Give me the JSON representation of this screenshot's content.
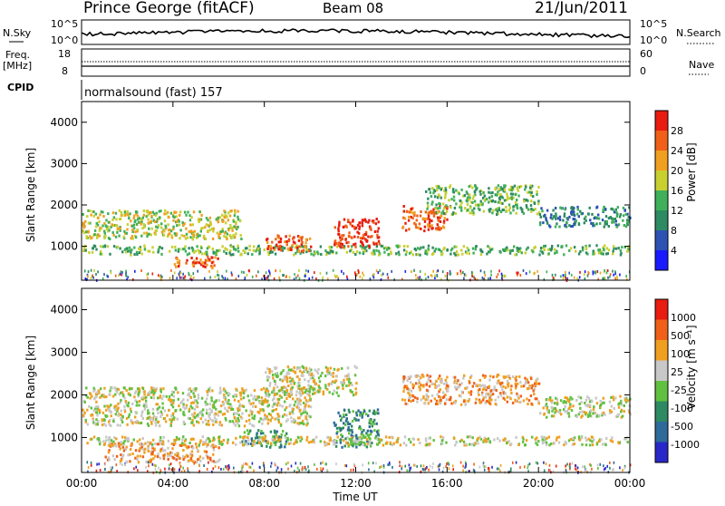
{
  "header": {
    "station": "Prince George (fitACF)",
    "beam": "Beam 08",
    "date": "21/Jun/2011"
  },
  "status_panels": {
    "nsky_label": "N.Sky",
    "nsky_ticks": [
      "10^5",
      "10^0"
    ],
    "nsearch_label": "N.Search",
    "nsearch_ticks": [
      "10^5",
      "10^0"
    ],
    "freq_label": "Freq.",
    "freq_unit": "[MHz]",
    "freq_ticks": [
      "18",
      "8"
    ],
    "nave_label": "Nave",
    "nave_ticks": [
      "60",
      "0"
    ],
    "cpid_label": "CPID",
    "cpid_value": "normalsound (fast) 157"
  },
  "chart_data": [
    {
      "type": "heatmap",
      "id": "power",
      "ylabel": "Slant Range [km]",
      "ylim": [
        180,
        4500
      ],
      "yticks": [
        1000,
        2000,
        3000,
        4000
      ],
      "xlim": [
        0,
        24
      ],
      "colorbar_label": "Power [dB]",
      "colorbar_ticks": [
        "4",
        "8",
        "12",
        "16",
        "20",
        "24",
        "28"
      ],
      "colors": [
        "#1a1aff",
        "#2c52b4",
        "#2e8a62",
        "#40b05a",
        "#c8d030",
        "#f0a020",
        "#f06018",
        "#e81c10"
      ],
      "scatter_regions": [
        {
          "x": [
            0,
            7
          ],
          "y": [
            1200,
            1900
          ],
          "level": 4
        },
        {
          "x": [
            0,
            24
          ],
          "y": [
            820,
            1050
          ],
          "level": 3
        },
        {
          "x": [
            4,
            6
          ],
          "y": [
            500,
            800
          ],
          "level": 6
        },
        {
          "x": [
            11,
            13
          ],
          "y": [
            1000,
            1700
          ],
          "level": 7
        },
        {
          "x": [
            8,
            10
          ],
          "y": [
            900,
            1300
          ],
          "level": 6
        },
        {
          "x": [
            14,
            16
          ],
          "y": [
            1400,
            2000
          ],
          "level": 6
        },
        {
          "x": [
            15,
            20
          ],
          "y": [
            1800,
            2500
          ],
          "level": 3
        },
        {
          "x": [
            20,
            24
          ],
          "y": [
            1500,
            2000
          ],
          "level": 2
        }
      ]
    },
    {
      "type": "heatmap",
      "id": "velocity",
      "ylabel": "Slant Range [km]",
      "ylim": [
        180,
        4500
      ],
      "yticks": [
        1000,
        2000,
        3000,
        4000
      ],
      "xlim": [
        0,
        24
      ],
      "xlabel": "Time UT",
      "xticks": [
        "00:00",
        "04:00",
        "08:00",
        "12:00",
        "16:00",
        "20:00",
        "00:00"
      ],
      "colorbar_label": "Velocity [m s⁻¹]",
      "colorbar_ticks": [
        "1000",
        "500",
        "100",
        "25",
        "-25",
        "-100",
        "-500",
        "-1000"
      ],
      "colors": [
        "#2828c8",
        "#2e6a9a",
        "#2e8a62",
        "#60c040",
        "#c8c8c8",
        "#f0a020",
        "#f06018",
        "#e81c10"
      ],
      "scatter_regions": [
        {
          "x": [
            0,
            10
          ],
          "y": [
            1300,
            2200
          ],
          "level": 4
        },
        {
          "x": [
            1,
            6
          ],
          "y": [
            450,
            900
          ],
          "level": 5
        },
        {
          "x": [
            7,
            9
          ],
          "y": [
            800,
            1200
          ],
          "level": 2
        },
        {
          "x": [
            11,
            13
          ],
          "y": [
            800,
            1700
          ],
          "level": 2
        },
        {
          "x": [
            14,
            20
          ],
          "y": [
            1800,
            2500
          ],
          "level": 5
        },
        {
          "x": [
            8,
            12
          ],
          "y": [
            2000,
            2700
          ],
          "level": 4
        },
        {
          "x": [
            0,
            24
          ],
          "y": [
            850,
            1050
          ],
          "level": 4
        },
        {
          "x": [
            20,
            24
          ],
          "y": [
            1500,
            2000
          ],
          "level": 4
        }
      ]
    }
  ]
}
